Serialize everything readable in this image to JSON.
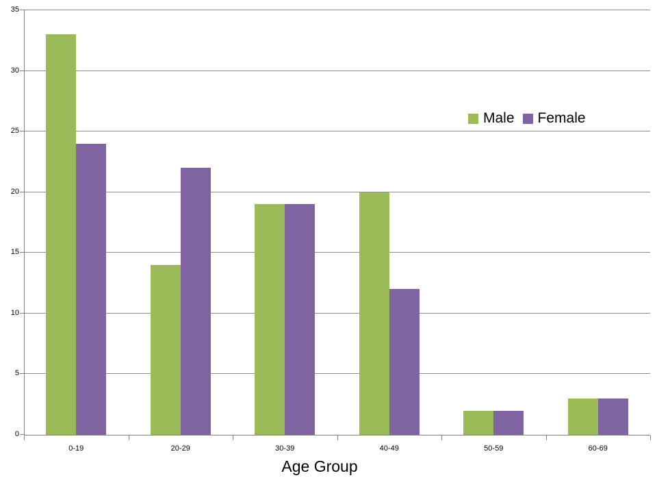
{
  "chart_data": {
    "type": "bar",
    "title": "",
    "xlabel": "Age Group",
    "ylabel": "",
    "categories": [
      "0-19",
      "20-29",
      "30-39",
      "40-49",
      "50-59",
      "60-69"
    ],
    "series": [
      {
        "name": "Male",
        "color": "#9BBB59",
        "values": [
          33,
          14,
          19,
          20,
          2,
          3
        ]
      },
      {
        "name": "Female",
        "color": "#8064A2",
        "values": [
          24,
          22,
          19,
          12,
          2,
          3
        ]
      }
    ],
    "ylim": [
      0,
      35
    ],
    "y_ticks": [
      0,
      5,
      10,
      15,
      20,
      25,
      30,
      35
    ],
    "y_tick_labels": [
      "0",
      "5",
      "10",
      "15",
      "20",
      "25",
      "30",
      "35"
    ],
    "grid": true,
    "legend_position": "inside-top-right",
    "colors": {
      "grid": "#8C8C8C",
      "axis": "#808080",
      "text": "#000000",
      "background": "#FFFFFF"
    }
  }
}
